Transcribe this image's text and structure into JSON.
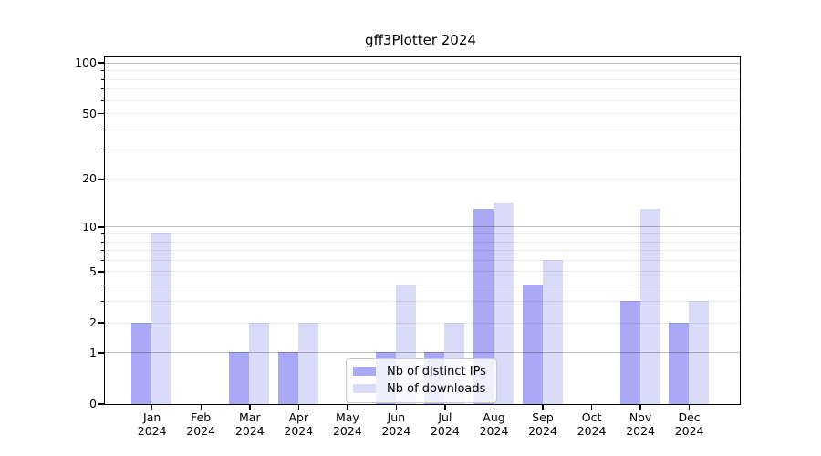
{
  "chart_data": {
    "type": "bar",
    "title": "gff3Plotter 2024",
    "categories": [
      "Jan",
      "Feb",
      "Mar",
      "Apr",
      "May",
      "Jun",
      "Jul",
      "Aug",
      "Sep",
      "Oct",
      "Nov",
      "Dec"
    ],
    "year": "2024",
    "series": [
      {
        "name": "Nb of distinct IPs",
        "color": "#a9a9f5",
        "values": [
          2,
          0,
          1,
          1,
          0,
          1,
          1,
          13,
          4,
          0,
          3,
          2
        ]
      },
      {
        "name": "Nb of downloads",
        "color": "#dadaf9",
        "values": [
          9,
          0,
          2,
          2,
          0,
          4,
          2,
          14,
          6,
          0,
          13,
          3
        ]
      }
    ],
    "xlabel": "",
    "ylabel": "",
    "y_axis": {
      "scale": "log1p",
      "labeled_ticks": [
        0,
        1,
        2,
        5,
        10,
        20,
        50,
        100
      ],
      "major_gridlines": [
        1,
        10,
        100
      ],
      "minor_gridlines": [
        2,
        3,
        4,
        5,
        6,
        7,
        8,
        9,
        20,
        30,
        40,
        50,
        60,
        70,
        80,
        90
      ],
      "ylim": [
        0,
        110
      ]
    },
    "legend": {
      "position": "lower center",
      "entries": [
        "Nb of distinct IPs",
        "Nb of downloads"
      ]
    },
    "grid": true
  },
  "colors": {
    "bar_distinct_ips": "#a9a9f5",
    "bar_downloads": "#dadaf9",
    "major_grid": "rgba(0,0,0,0.25)",
    "minor_grid": "rgba(0,0,0,0.08)",
    "spine": "#000000",
    "legend_border": "#cbcbcb"
  }
}
